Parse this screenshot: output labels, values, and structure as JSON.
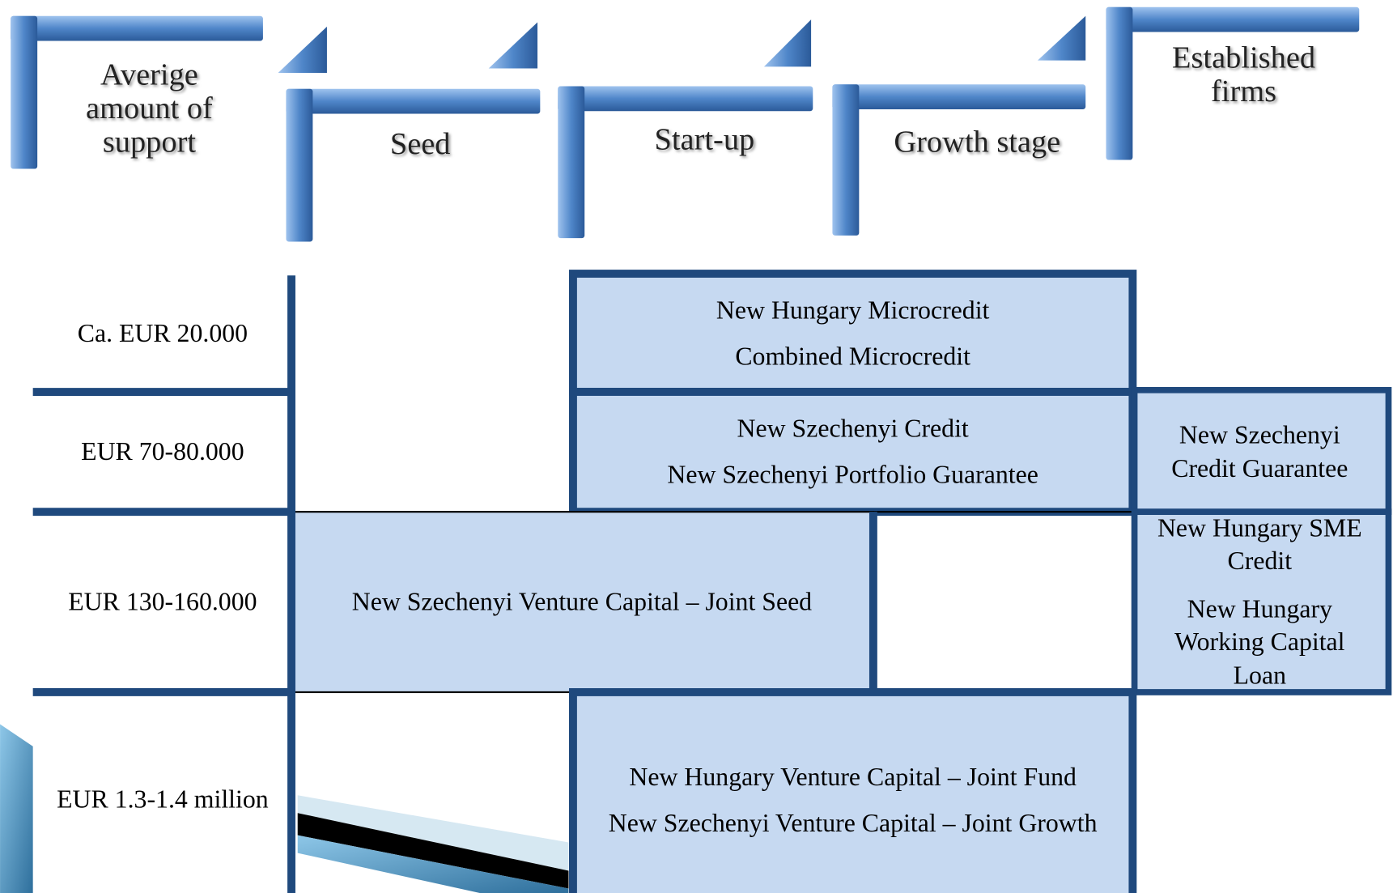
{
  "headers": [
    {
      "lines": [
        "Averige",
        "amount of",
        "support"
      ]
    },
    {
      "lines": [
        "Seed"
      ]
    },
    {
      "lines": [
        "Start-up"
      ]
    },
    {
      "lines": [
        "Growth stage"
      ]
    },
    {
      "lines": [
        "Established",
        "firms"
      ]
    }
  ],
  "rows": [
    "Ca. EUR 20.000",
    "EUR 70-80.000",
    "EUR 130-160.000",
    "EUR 1.3-1.4 million"
  ],
  "cells": [
    {
      "lines": [
        "New Hungary Microcredit",
        "Combined Microcredit"
      ]
    },
    {
      "lines": [
        "New Szechenyi Credit",
        "New Szechenyi Portfolio Guarantee"
      ]
    },
    {
      "lines": [
        "New Szechenyi",
        "Credit Guarantee"
      ]
    },
    {
      "lines": [
        "New Szechenyi Venture Capital – Joint Seed"
      ]
    },
    {
      "lines": [
        "New Hungary SME",
        "Credit",
        "New Hungary",
        "Working Capital",
        "Loan"
      ]
    },
    {
      "lines": [
        "New Hungary Venture Capital – Joint Fund",
        "New Szechenyi Venture Capital – Joint Growth"
      ]
    }
  ]
}
